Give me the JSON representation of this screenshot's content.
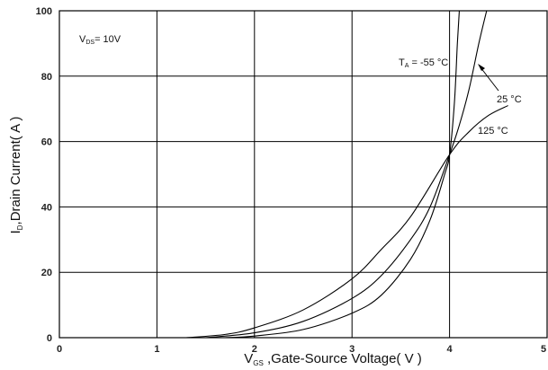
{
  "chart_data": {
    "type": "line",
    "title": "",
    "xlabel_main": "V",
    "xlabel_sub": "GS",
    "xlabel_rest": " ,Gate-Source Voltage( V )",
    "ylabel_main": "I",
    "ylabel_sub": "D",
    "ylabel_rest": ",Drain Current( A )",
    "xlim": [
      0,
      5
    ],
    "ylim": [
      0,
      100
    ],
    "x_ticks": [
      "0",
      "1",
      "2",
      "3",
      "4",
      "5"
    ],
    "y_ticks": [
      "0",
      "20",
      "40",
      "60",
      "80",
      "100"
    ],
    "grid": true,
    "annotations": {
      "vds_main": "V",
      "vds_sub": "DS",
      "vds_rest": "= 10V",
      "ta_main": "T",
      "ta_sub": "A",
      "ta_rest": " = -55 °C",
      "t25": "25 °C",
      "t125": "125 °C"
    },
    "series": [
      {
        "label_ref": "annotations.ta_rest",
        "x": [
          1.7,
          2.0,
          2.5,
          3.0,
          3.3,
          3.6,
          3.8,
          3.95,
          4.0,
          4.05,
          4.08,
          4.1
        ],
        "y": [
          0,
          0.5,
          2.5,
          7.5,
          13,
          24,
          36,
          50,
          56,
          72,
          90,
          100
        ]
      },
      {
        "label_ref": "annotations.t25",
        "x": [
          1.5,
          2.0,
          2.5,
          3.0,
          3.3,
          3.6,
          3.8,
          4.0,
          4.1,
          4.2,
          4.3,
          4.38
        ],
        "y": [
          0,
          1.5,
          5,
          12,
          19,
          30,
          40,
          56,
          65,
          76,
          90,
          100
        ]
      },
      {
        "label_ref": "annotations.t125",
        "x": [
          1.3,
          1.7,
          2.0,
          2.5,
          3.0,
          3.3,
          3.6,
          4.0,
          4.2,
          4.4,
          4.6
        ],
        "y": [
          0,
          1,
          3,
          8.5,
          18,
          27,
          37,
          56,
          63,
          68,
          71
        ]
      }
    ]
  }
}
